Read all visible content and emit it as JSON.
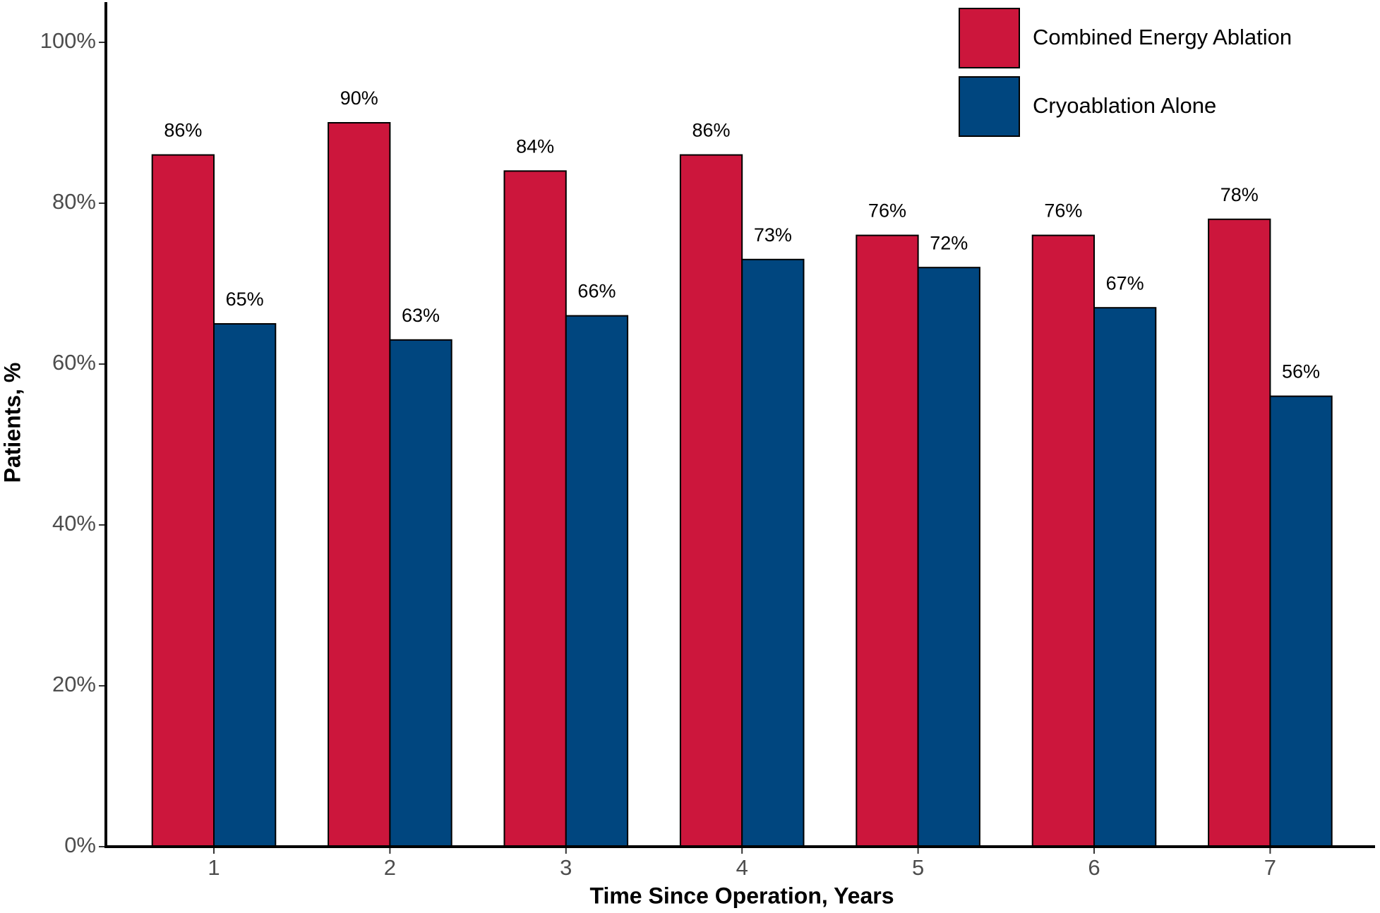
{
  "chart_data": {
    "type": "bar",
    "x_label": "Time Since Operation, Years",
    "y_label": "Patients, %",
    "categories": [
      "1",
      "2",
      "3",
      "4",
      "5",
      "6",
      "7"
    ],
    "series": [
      {
        "name": "Combined Energy Ablation",
        "color": "#cc163c",
        "values": [
          86,
          90,
          84,
          86,
          76,
          76,
          78
        ],
        "value_labels": [
          "86%",
          "90%",
          "84%",
          "86%",
          "76%",
          "76%",
          "78%"
        ]
      },
      {
        "name": "Cryoablation Alone",
        "color": "#00467f",
        "values": [
          65,
          63,
          66,
          73,
          72,
          67,
          56
        ],
        "value_labels": [
          "65%",
          "63%",
          "66%",
          "73%",
          "72%",
          "67%",
          "56%"
        ]
      }
    ],
    "ylim": [
      0,
      105
    ],
    "yticks": [
      {
        "value": 0,
        "label": "0%"
      },
      {
        "value": 20,
        "label": "20%"
      },
      {
        "value": 40,
        "label": "40%"
      },
      {
        "value": 60,
        "label": "60%"
      },
      {
        "value": 80,
        "label": "80%"
      },
      {
        "value": 100,
        "label": "100%"
      }
    ],
    "grid": false,
    "legend": "top-right"
  }
}
